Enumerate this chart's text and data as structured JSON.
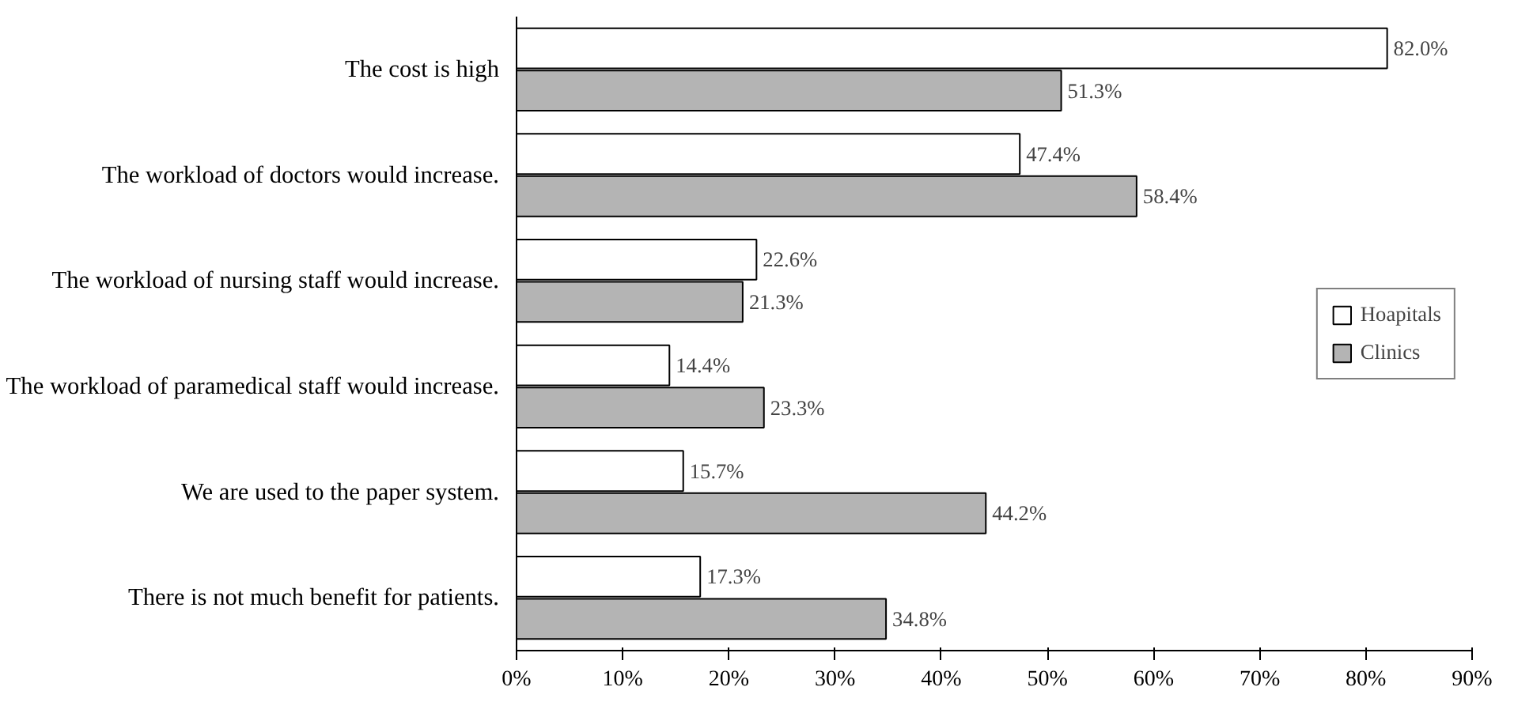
{
  "chart_data": {
    "type": "bar",
    "orientation": "horizontal",
    "categories": [
      "The cost is high",
      "The workload of doctors would increase.",
      "The workload of nursing staff would increase.",
      "The workload of paramedical staff would increase.",
      "We are used to the paper system.",
      "There is not much benefit for patients."
    ],
    "series": [
      {
        "name": "Hoapitals",
        "color": "#ffffff",
        "values": [
          82.0,
          47.4,
          22.6,
          14.4,
          15.7,
          17.3
        ],
        "value_labels": [
          "82.0%",
          "47.4%",
          "22.6%",
          "14.4%",
          "15.7%",
          "17.3%"
        ]
      },
      {
        "name": "Clinics",
        "color": "#b4b4b4",
        "values": [
          51.3,
          58.4,
          21.3,
          23.3,
          44.2,
          34.8
        ],
        "value_labels": [
          "51.3%",
          "58.4%",
          "21.3%",
          "23.3%",
          "44.2%",
          "34.8%"
        ]
      }
    ],
    "xlim": [
      0,
      90
    ],
    "xticks": [
      {
        "value": 0,
        "label": "0%"
      },
      {
        "value": 10,
        "label": "10%"
      },
      {
        "value": 20,
        "label": "20%"
      },
      {
        "value": 30,
        "label": "30%"
      },
      {
        "value": 40,
        "label": "40%"
      },
      {
        "value": 50,
        "label": "50%"
      },
      {
        "value": 60,
        "label": "60%"
      },
      {
        "value": 70,
        "label": "70%"
      },
      {
        "value": 80,
        "label": "80%"
      },
      {
        "value": 90,
        "label": "90%"
      }
    ],
    "grid": false,
    "legend": "right"
  }
}
